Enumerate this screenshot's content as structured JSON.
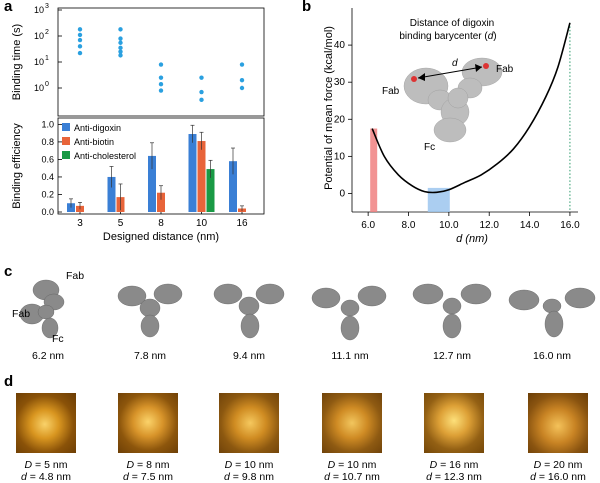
{
  "panels": {
    "a": "a",
    "b": "b",
    "c": "c",
    "d": "d"
  },
  "panel_a": {
    "ylabel_top": "Binding time (s)",
    "ylabel_bottom": "Binding efficiency",
    "xlabel": "Designed distance (nm)",
    "top_ticks": [
      "10",
      "10",
      "10",
      "10"
    ],
    "top_exps": [
      "0",
      "1",
      "2",
      "3"
    ],
    "bottom_ticks": [
      "0.0",
      "0.2",
      "0.4",
      "0.6",
      "0.8",
      "1.0"
    ],
    "x_ticks": [
      "3",
      "5",
      "8",
      "10",
      "16"
    ],
    "legend": [
      "Anti-digoxin",
      "Anti-biotin",
      "Anti-cholesterol"
    ]
  },
  "panel_b": {
    "ylabel": "Potential of mean force (kcal/mol)",
    "xlabel": "d (nm)",
    "x_ticks": [
      "6.0",
      "8.0",
      "10.0",
      "12.0",
      "14.0",
      "16.0"
    ],
    "y_ticks": [
      "0",
      "10",
      "20",
      "30",
      "40"
    ],
    "inset_title_1": "Distance of digoxin",
    "inset_title_2": "binding barycenter (",
    "inset_title_d": "d",
    "inset_title_end": ")",
    "label_d": "d",
    "label_fab_left": "Fab",
    "label_fab_right": "Fab",
    "label_fc": "Fc"
  },
  "panel_c": {
    "captions": [
      "6.2 nm",
      "7.8 nm",
      "9.4 nm",
      "11.1 nm",
      "12.7 nm",
      "16.0 nm"
    ],
    "label_fab_top": "Fab",
    "label_fab_left": "Fab",
    "label_fc": "Fc"
  },
  "panel_d": {
    "D_values": [
      "5 nm",
      "8 nm",
      "10 nm",
      "10 nm",
      "16 nm",
      "20 nm"
    ],
    "d_values": [
      "4.8 nm",
      "7.5 nm",
      "9.8 nm",
      "10.7 nm",
      "12.3 nm",
      "16.0 nm"
    ],
    "D_label": "D",
    "d_label": "d",
    "eq": " = "
  },
  "colors": {
    "dot": "#2aa0e0",
    "digoxin": "#3a7fd5",
    "biotin": "#e8643a",
    "cholesterol": "#1a9a45",
    "curve": "#000000",
    "shade_red": "#f08080",
    "shade_blue": "#9cc6ee",
    "dotted_green": "#2a9a6a"
  },
  "chart_data": [
    {
      "type": "scatter",
      "title": "",
      "xlabel": "Designed distance (nm)",
      "ylabel": "Binding time (s)",
      "yscale": "log",
      "ylim": [
        0.1,
        1000
      ],
      "categories": [
        "3",
        "5",
        "8",
        "10",
        "16"
      ],
      "points": [
        {
          "x": "3",
          "y": 180
        },
        {
          "x": "3",
          "y": 110
        },
        {
          "x": "3",
          "y": 70
        },
        {
          "x": "3",
          "y": 40
        },
        {
          "x": "3",
          "y": 22
        },
        {
          "x": "5",
          "y": 180
        },
        {
          "x": "5",
          "y": 80
        },
        {
          "x": "5",
          "y": 55
        },
        {
          "x": "5",
          "y": 35
        },
        {
          "x": "5",
          "y": 25
        },
        {
          "x": "5",
          "y": 18
        },
        {
          "x": "8",
          "y": 8
        },
        {
          "x": "8",
          "y": 2.5
        },
        {
          "x": "8",
          "y": 1.4
        },
        {
          "x": "8",
          "y": 0.8
        },
        {
          "x": "10",
          "y": 2.5
        },
        {
          "x": "10",
          "y": 0.7
        },
        {
          "x": "10",
          "y": 0.35
        },
        {
          "x": "16",
          "y": 8
        },
        {
          "x": "16",
          "y": 2
        },
        {
          "x": "16",
          "y": 1
        }
      ]
    },
    {
      "type": "bar",
      "title": "",
      "xlabel": "Designed distance (nm)",
      "ylabel": "Binding efficiency",
      "ylim": [
        0,
        1.05
      ],
      "categories": [
        "3",
        "5",
        "8",
        "10",
        "16"
      ],
      "series": [
        {
          "name": "Anti-digoxin",
          "values": [
            0.1,
            0.4,
            0.64,
            0.89,
            0.58
          ],
          "errors": [
            0.05,
            0.12,
            0.15,
            0.1,
            0.15
          ]
        },
        {
          "name": "Anti-biotin",
          "values": [
            0.07,
            0.17,
            0.22,
            0.81,
            0.04
          ],
          "errors": [
            0.04,
            0.15,
            0.08,
            0.1,
            0.03
          ]
        },
        {
          "name": "Anti-cholesterol",
          "values": [
            0,
            0,
            0,
            0.49,
            0
          ],
          "errors": [
            0,
            0,
            0,
            0.1,
            0
          ]
        }
      ]
    },
    {
      "type": "line",
      "title": "",
      "xlabel": "d (nm)",
      "ylabel": "Potential of mean force (kcal/mol)",
      "xlim": [
        5.2,
        16.4
      ],
      "ylim": [
        -5,
        50
      ],
      "x": [
        6.2,
        6.8,
        7.5,
        8.2,
        8.8,
        9.4,
        10.0,
        10.8,
        11.6,
        12.4,
        13.2,
        14.0,
        14.8,
        15.4,
        16.0
      ],
      "y": [
        17.5,
        10,
        5,
        2,
        0.5,
        0.3,
        1,
        3,
        5,
        8,
        12,
        18,
        26,
        34,
        46
      ],
      "shaded_x": [
        6.3,
        9.6
      ],
      "dotted_x": [
        16.0
      ]
    }
  ]
}
